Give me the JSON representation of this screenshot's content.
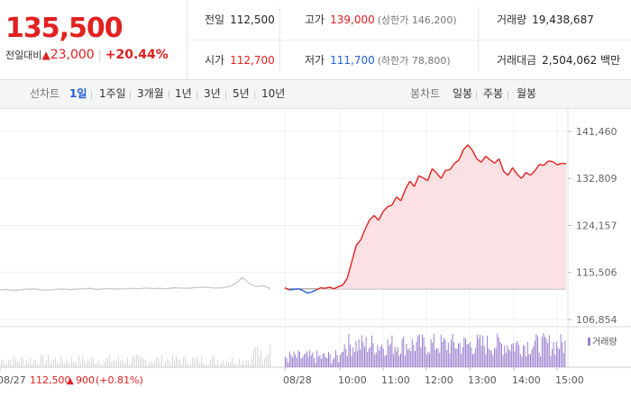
{
  "price": {
    "current": "135,500",
    "change_label": "전일대비",
    "change_arrow": "▲",
    "change_value": "23,000",
    "change_pct": "+20.44%",
    "up_color": "#e12020",
    "down_color": "#1f5fd3"
  },
  "quote": {
    "prev_close_label": "전일",
    "prev_close": "112,500",
    "high_label": "고가",
    "high": "139,000",
    "upper_limit": "(상한가 146,200)",
    "volume_label": "거래량",
    "volume": "19,438,687",
    "open_label": "시가",
    "open": "112,700",
    "low_label": "저가",
    "low": "111,700",
    "lower_limit": "(하한가 78,800)",
    "amount_label": "거래대금",
    "amount": "2,504,062 백만"
  },
  "tabs": {
    "line_label": "선차트",
    "line": [
      "1일",
      "1주일",
      "3개월",
      "1년",
      "3년",
      "5년",
      "10년"
    ],
    "active": "1일",
    "candle_label": "봉차트",
    "candle": [
      "일봉",
      "주봉",
      "월봉"
    ]
  },
  "chart_data": {
    "type": "line",
    "yticks": [
      "141,460",
      "132,809",
      "124,157",
      "115,506",
      "106,854"
    ],
    "ylim": [
      106854,
      141460
    ],
    "x_labels": [
      "08/27",
      "08/28",
      "10:00",
      "11:00",
      "12:00",
      "13:00",
      "14:00",
      "15:00"
    ],
    "prev_day_note": {
      "date": "08/27",
      "price": "112,500",
      "arrow": "▲",
      "change": "900",
      "pct": "(+0.81%)"
    },
    "volume_legend": "거래량",
    "base_price": 112500,
    "series": [
      {
        "day": "08/27",
        "values": [
          112300,
          112400,
          112200,
          112350,
          112450,
          112500,
          112300,
          112250,
          112400,
          112500,
          112350,
          112450,
          112500,
          112600,
          112400,
          112500,
          112550,
          112450,
          112500,
          112600,
          112500,
          112650,
          112550,
          112600,
          112500,
          112700,
          112650,
          112600,
          112700,
          112800,
          112750,
          112650,
          112700,
          112900,
          113500,
          114600,
          113400,
          112900,
          113100,
          112500
        ]
      },
      {
        "day": "08/28",
        "values": [
          112700,
          112300,
          112400,
          112500,
          112200,
          111700,
          111900,
          112300,
          112700,
          112600,
          112800,
          112500,
          112900,
          113200,
          114500,
          117500,
          120500,
          121500,
          123500,
          125200,
          126000,
          125100,
          126700,
          127600,
          127900,
          129400,
          128700,
          130800,
          132300,
          131300,
          133300,
          132900,
          132400,
          134600,
          133800,
          132800,
          134300,
          134400,
          135600,
          136200,
          138100,
          139000,
          138000,
          136400,
          135800,
          136900,
          136200,
          135600,
          136400,
          134100,
          133400,
          134800,
          133600,
          132800,
          133900,
          133400,
          134200,
          135400,
          135200,
          136000,
          135900,
          135300,
          135600,
          135500
        ]
      }
    ],
    "volume_color": "#9b7fcf"
  }
}
